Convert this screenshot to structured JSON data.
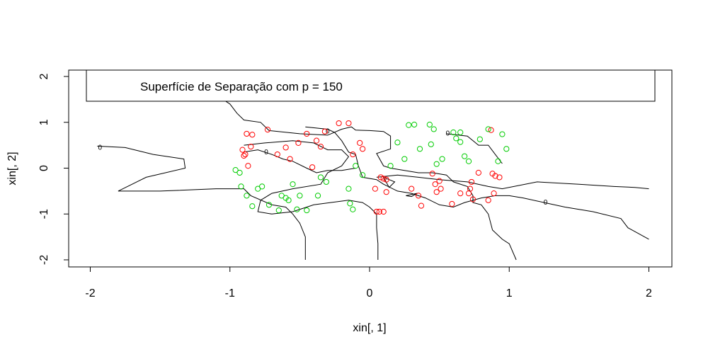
{
  "chart_data": {
    "type": "scatter",
    "xlabel": "xin[, 1]",
    "ylabel": "xin[, 2]",
    "xlim": [
      -2.1,
      2.1
    ],
    "ylim": [
      -2.1,
      2.1
    ],
    "xticks": [
      -2,
      -1,
      0,
      1,
      2
    ],
    "yticks": [
      -2,
      -1,
      0,
      1,
      2
    ],
    "grid": false,
    "legend_position": "top",
    "legend_text": "Superfície de Separação com p = 150",
    "colors": {
      "class_red": "#ff0000",
      "class_green": "#00cc00",
      "contour": "#000000",
      "axes": "#000000"
    },
    "contour_level_label": "0",
    "contour_label_points": [
      [
        -1.93,
        0.45
      ],
      [
        -0.74,
        0.35
      ],
      [
        -0.3,
        0.8
      ],
      [
        0.56,
        0.76
      ],
      [
        1.26,
        -0.75
      ]
    ],
    "series": [
      {
        "marker": "open-circle",
        "color": "#ff0000",
        "points": [
          [
            -0.88,
            0.75
          ],
          [
            -0.84,
            0.73
          ],
          [
            -0.73,
            0.84
          ],
          [
            -0.91,
            0.4
          ],
          [
            -0.89,
            0.3
          ],
          [
            -0.85,
            0.47
          ],
          [
            -0.6,
            0.45
          ],
          [
            -0.66,
            0.3
          ],
          [
            -0.9,
            0.27
          ],
          [
            -0.57,
            0.2
          ],
          [
            -0.51,
            0.55
          ],
          [
            -0.45,
            0.75
          ],
          [
            -0.38,
            0.6
          ],
          [
            -0.35,
            0.47
          ],
          [
            -0.32,
            0.8
          ],
          [
            -0.22,
            0.98
          ],
          [
            -0.15,
            0.98
          ],
          [
            -0.07,
            0.55
          ],
          [
            -0.05,
            0.42
          ],
          [
            -0.12,
            0.3
          ],
          [
            -0.87,
            0.05
          ],
          [
            -0.41,
            0.02
          ],
          [
            0.04,
            -0.45
          ],
          [
            0.08,
            -0.2
          ],
          [
            0.1,
            -0.23
          ],
          [
            0.12,
            -0.25
          ],
          [
            0.12,
            -0.52
          ],
          [
            0.05,
            -0.95
          ],
          [
            0.07,
            -0.95
          ],
          [
            0.1,
            -0.95
          ],
          [
            0.3,
            -0.45
          ],
          [
            0.35,
            -0.6
          ],
          [
            0.37,
            -0.82
          ],
          [
            0.47,
            -0.35
          ],
          [
            0.48,
            -0.52
          ],
          [
            0.5,
            -0.28
          ],
          [
            0.51,
            -0.45
          ],
          [
            0.45,
            -0.12
          ],
          [
            0.59,
            -0.78
          ],
          [
            0.65,
            -0.55
          ],
          [
            0.71,
            -0.55
          ],
          [
            0.72,
            -0.45
          ],
          [
            0.73,
            -0.3
          ],
          [
            0.74,
            -0.68
          ],
          [
            0.78,
            -0.1
          ],
          [
            0.85,
            -0.7
          ],
          [
            0.88,
            -0.12
          ],
          [
            0.9,
            -0.17
          ],
          [
            0.93,
            -0.2
          ],
          [
            0.89,
            -0.55
          ],
          [
            0.87,
            0.83
          ]
        ]
      },
      {
        "marker": "open-circle",
        "color": "#00cc00",
        "points": [
          [
            -0.96,
            -0.04
          ],
          [
            -0.93,
            -0.1
          ],
          [
            -0.92,
            -0.4
          ],
          [
            -0.88,
            -0.6
          ],
          [
            -0.84,
            -0.83
          ],
          [
            -0.8,
            -0.45
          ],
          [
            -0.77,
            -0.4
          ],
          [
            -0.72,
            -0.8
          ],
          [
            -0.65,
            -0.92
          ],
          [
            -0.63,
            -0.6
          ],
          [
            -0.6,
            -0.65
          ],
          [
            -0.58,
            -0.7
          ],
          [
            -0.55,
            -0.35
          ],
          [
            -0.52,
            -0.9
          ],
          [
            -0.5,
            -0.6
          ],
          [
            -0.45,
            -0.92
          ],
          [
            -0.37,
            -0.6
          ],
          [
            -0.35,
            -0.2
          ],
          [
            -0.31,
            -0.3
          ],
          [
            -0.15,
            -0.45
          ],
          [
            -0.14,
            -0.77
          ],
          [
            -0.12,
            -0.9
          ],
          [
            -0.1,
            0.05
          ],
          [
            -0.05,
            -0.15
          ],
          [
            0.15,
            0.05
          ],
          [
            0.2,
            0.56
          ],
          [
            0.25,
            0.2
          ],
          [
            0.28,
            0.94
          ],
          [
            0.32,
            0.95
          ],
          [
            0.36,
            0.42
          ],
          [
            0.43,
            0.95
          ],
          [
            0.44,
            0.52
          ],
          [
            0.46,
            0.85
          ],
          [
            0.48,
            0.09
          ],
          [
            0.52,
            0.2
          ],
          [
            0.6,
            0.78
          ],
          [
            0.62,
            0.65
          ],
          [
            0.65,
            0.78
          ],
          [
            0.65,
            0.57
          ],
          [
            0.68,
            0.26
          ],
          [
            0.71,
            0.15
          ],
          [
            0.79,
            0.63
          ],
          [
            0.85,
            0.85
          ],
          [
            0.92,
            0.15
          ],
          [
            0.95,
            0.74
          ],
          [
            0.98,
            0.42
          ]
        ]
      }
    ],
    "contour_lines": [
      [
        [
          -1.33,
          2.0
        ],
        [
          -1.27,
          1.85
        ],
        [
          -1.1,
          1.6
        ],
        [
          -1.0,
          1.4
        ],
        [
          -0.95,
          1.2
        ],
        [
          -0.9,
          1.05
        ],
        [
          -0.78,
          1.0
        ],
        [
          -0.72,
          0.82
        ],
        [
          -0.5,
          0.75
        ],
        [
          -0.3,
          0.72
        ],
        [
          -0.2,
          0.85
        ],
        [
          -0.13,
          0.9
        ],
        [
          -0.1,
          0.83
        ],
        [
          0.0,
          0.82
        ],
        [
          0.1,
          0.8
        ],
        [
          0.15,
          0.7
        ],
        [
          0.15,
          0.42
        ],
        [
          0.05,
          0.32
        ],
        [
          0.1,
          0.05
        ],
        [
          0.15,
          0.0
        ],
        [
          0.25,
          -0.05
        ],
        [
          0.35,
          -0.1
        ],
        [
          0.45,
          -0.1
        ],
        [
          0.55,
          -0.15
        ],
        [
          0.6,
          -0.3
        ],
        [
          0.7,
          -0.4
        ],
        [
          0.74,
          -0.6
        ],
        [
          0.74,
          -0.75
        ],
        [
          0.8,
          -0.8
        ],
        [
          0.85,
          -1.0
        ],
        [
          0.88,
          -1.35
        ],
        [
          0.95,
          -1.55
        ],
        [
          1.0,
          -1.65
        ],
        [
          1.05,
          -2.0
        ]
      ],
      [
        [
          -1.95,
          0.48
        ],
        [
          -1.75,
          0.45
        ],
        [
          -1.55,
          0.3
        ],
        [
          -1.33,
          0.2
        ],
        [
          -1.32,
          0.0
        ],
        [
          -1.6,
          -0.2
        ],
        [
          -1.8,
          -0.5
        ],
        [
          -1.5,
          -0.5
        ],
        [
          -1.1,
          -0.45
        ],
        [
          -0.9,
          -0.45
        ],
        [
          -0.85,
          -0.6
        ],
        [
          -0.7,
          -0.8
        ],
        [
          -0.6,
          -0.85
        ],
        [
          -0.55,
          -1.0
        ],
        [
          -0.5,
          -1.2
        ],
        [
          -0.46,
          -1.5
        ],
        [
          -0.46,
          -2.0
        ]
      ],
      [
        [
          -0.46,
          0.9
        ],
        [
          -0.3,
          0.85
        ],
        [
          -0.25,
          0.78
        ],
        [
          -0.2,
          0.6
        ],
        [
          -0.15,
          0.35
        ],
        [
          -0.1,
          0.3
        ],
        [
          -0.08,
          0.05
        ],
        [
          -0.05,
          -0.2
        ],
        [
          0.05,
          -0.25
        ],
        [
          0.1,
          -0.35
        ],
        [
          0.2,
          -0.5
        ],
        [
          0.3,
          -0.55
        ],
        [
          0.4,
          -0.65
        ],
        [
          0.5,
          -0.8
        ],
        [
          0.6,
          -0.85
        ],
        [
          0.68,
          -0.75
        ],
        [
          0.8,
          -0.65
        ],
        [
          0.9,
          -0.6
        ],
        [
          1.0,
          -0.6
        ],
        [
          1.1,
          -0.65
        ],
        [
          1.25,
          -0.75
        ],
        [
          1.4,
          -0.85
        ],
        [
          1.6,
          -0.95
        ],
        [
          1.8,
          -1.1
        ],
        [
          1.85,
          -1.3
        ],
        [
          2.0,
          -1.55
        ]
      ],
      [
        [
          -0.9,
          0.5
        ],
        [
          -0.75,
          0.55
        ],
        [
          -0.55,
          0.6
        ],
        [
          -0.4,
          0.55
        ],
        [
          -0.3,
          0.4
        ],
        [
          -0.2,
          0.4
        ],
        [
          -0.15,
          0.25
        ],
        [
          -0.2,
          0.05
        ],
        [
          -0.3,
          -0.1
        ],
        [
          -0.35,
          -0.35
        ],
        [
          -0.55,
          -0.45
        ],
        [
          -0.7,
          -0.55
        ],
        [
          -0.78,
          -0.7
        ],
        [
          -0.8,
          -0.95
        ],
        [
          -0.7,
          -1.0
        ],
        [
          -0.55,
          -0.95
        ],
        [
          -0.4,
          -0.8
        ],
        [
          -0.15,
          -0.7
        ],
        [
          -0.05,
          -0.75
        ],
        [
          0.0,
          -0.85
        ],
        [
          0.05,
          -1.0
        ],
        [
          0.05,
          -1.3
        ],
        [
          0.06,
          -1.65
        ],
        [
          0.06,
          -2.0
        ]
      ],
      [
        [
          0.05,
          -0.2
        ],
        [
          0.2,
          -0.15
        ],
        [
          0.35,
          -0.2
        ],
        [
          0.5,
          -0.25
        ],
        [
          0.7,
          -0.3
        ],
        [
          0.85,
          -0.4
        ],
        [
          0.95,
          -0.45
        ],
        [
          1.2,
          -0.3
        ],
        [
          1.5,
          -0.35
        ],
        [
          1.75,
          -0.4
        ],
        [
          1.9,
          -0.42
        ],
        [
          2.0,
          -0.45
        ]
      ],
      [
        [
          -0.9,
          0.35
        ],
        [
          -0.8,
          0.4
        ],
        [
          -0.7,
          0.3
        ],
        [
          -0.62,
          0.2
        ],
        [
          -0.55,
          0.15
        ],
        [
          -0.45,
          0.0
        ],
        [
          -0.38,
          -0.1
        ],
        [
          -0.3,
          -0.05
        ],
        [
          -0.2,
          -0.05
        ],
        [
          -0.1,
          0.0
        ]
      ],
      [
        [
          0.26,
          -0.6
        ],
        [
          0.34,
          -0.55
        ],
        [
          0.3,
          -0.62
        ],
        [
          0.26,
          -0.6
        ]
      ],
      [
        [
          0.1,
          -0.2
        ],
        [
          0.18,
          -0.3
        ],
        [
          0.14,
          -0.42
        ],
        [
          0.1,
          -0.2
        ]
      ],
      [
        [
          0.55,
          0.75
        ],
        [
          0.7,
          0.7
        ],
        [
          0.78,
          0.5
        ],
        [
          0.85,
          0.5
        ],
        [
          0.9,
          0.3
        ],
        [
          0.95,
          0.1
        ]
      ]
    ]
  }
}
